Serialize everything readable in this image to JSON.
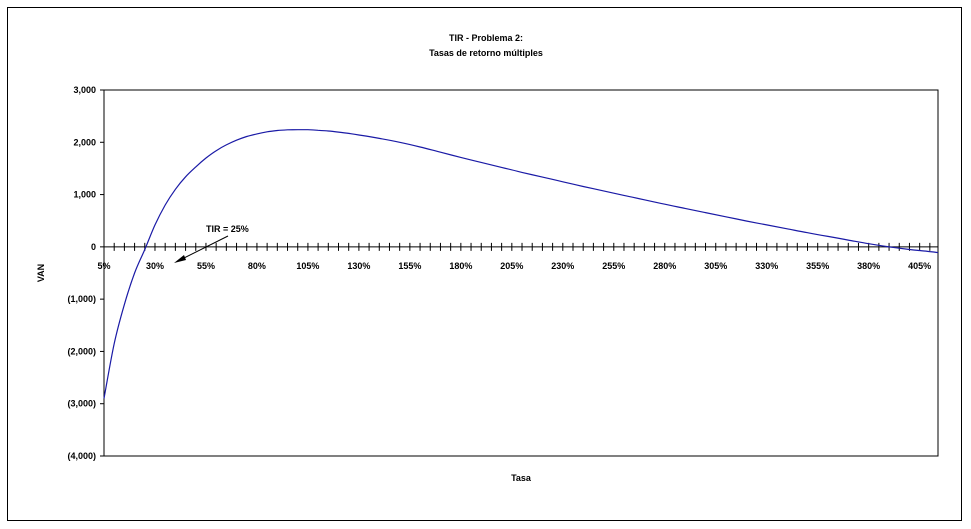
{
  "chart_data": {
    "type": "line",
    "title": "TIR - Problema 2:",
    "subtitle": "Tasas de retorno múltiples",
    "xlabel": "Tasa",
    "ylabel": "VAN",
    "xlim": [
      5,
      414
    ],
    "ylim": [
      -4000,
      3000
    ],
    "y_ticks": [
      3000,
      2000,
      1000,
      0,
      -1000,
      -2000,
      -3000,
      -4000
    ],
    "y_tick_labels": [
      "3,000",
      "2,000",
      "1,000",
      "0",
      "(1,000)",
      "(2,000)",
      "(3,000)",
      "(4,000)"
    ],
    "x_tick_labels": [
      "5%",
      "30%",
      "55%",
      "80%",
      "105%",
      "130%",
      "155%",
      "180%",
      "205%",
      "230%",
      "255%",
      "280%",
      "305%",
      "330%",
      "355%",
      "380%",
      "405%"
    ],
    "x_tick_values": [
      5,
      30,
      55,
      80,
      105,
      130,
      155,
      180,
      205,
      230,
      255,
      280,
      305,
      330,
      355,
      380,
      405
    ],
    "minor_tick_step": 5,
    "grid": false,
    "line_color": "#1a1aa6",
    "annotation": {
      "text": "TIR = 25%",
      "x": 25,
      "y": 0
    },
    "series": [
      {
        "x": [
          5,
          10,
          15,
          20,
          25,
          30,
          35,
          40,
          45,
          50,
          55,
          60,
          65,
          70,
          75,
          80,
          85,
          90,
          95,
          100,
          105,
          110,
          115,
          120,
          125,
          130,
          140,
          150,
          160,
          170,
          180,
          190,
          200,
          210,
          220,
          230,
          240,
          250,
          260,
          270,
          280,
          290,
          300,
          310,
          320,
          330,
          340,
          350,
          360,
          370,
          380,
          390,
          400,
          405,
          410,
          414
        ],
        "y": [
          -2900,
          -1850,
          -1100,
          -500,
          -50,
          420,
          800,
          1100,
          1340,
          1530,
          1700,
          1840,
          1950,
          2040,
          2110,
          2160,
          2200,
          2225,
          2238,
          2240,
          2240,
          2230,
          2215,
          2195,
          2170,
          2140,
          2075,
          2000,
          1910,
          1810,
          1710,
          1615,
          1520,
          1425,
          1335,
          1245,
          1155,
          1070,
          985,
          900,
          815,
          735,
          655,
          575,
          495,
          420,
          345,
          270,
          200,
          130,
          60,
          0,
          -50,
          -70,
          -90,
          -110
        ]
      }
    ]
  }
}
